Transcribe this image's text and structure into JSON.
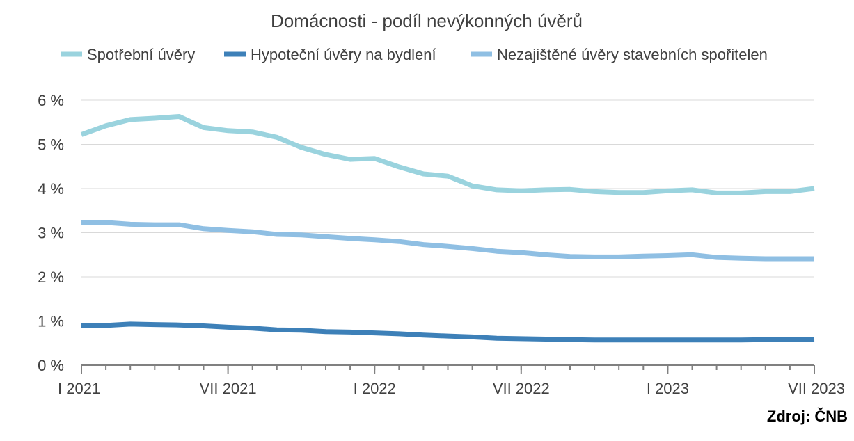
{
  "chart_data": {
    "type": "line",
    "title": "Domácnosti - podíl nevýkonných úvěrů",
    "source": "Zdroj: ČNB",
    "ylim": [
      0,
      6
    ],
    "yticks": [
      "0 %",
      "1 %",
      "2 %",
      "3 %",
      "4 %",
      "5 %",
      "6 %"
    ],
    "xticks": [
      {
        "label": "I 2021",
        "index": 0
      },
      {
        "label": "VII 2021",
        "index": 6
      },
      {
        "label": "I 2022",
        "index": 12
      },
      {
        "label": "VII 2022",
        "index": 18
      },
      {
        "label": "I 2023",
        "index": 24
      },
      {
        "label": "VII 2023",
        "index": 30
      }
    ],
    "grid": true,
    "legend_position": "top",
    "series": [
      {
        "name": "Spotřební úvěry",
        "color": "#9ad3de",
        "values": [
          5.22,
          5.42,
          5.56,
          5.59,
          5.63,
          5.38,
          5.31,
          5.28,
          5.16,
          4.93,
          4.77,
          4.66,
          4.68,
          4.49,
          4.33,
          4.28,
          4.06,
          3.97,
          3.95,
          3.97,
          3.98,
          3.93,
          3.91,
          3.91,
          3.95,
          3.97,
          3.9,
          3.9,
          3.93,
          3.93,
          4.0
        ]
      },
      {
        "name": "Hypoteční úvěry na bydlení",
        "color": "#3d80b8",
        "values": [
          0.9,
          0.9,
          0.93,
          0.92,
          0.91,
          0.89,
          0.86,
          0.84,
          0.8,
          0.79,
          0.76,
          0.75,
          0.73,
          0.71,
          0.68,
          0.66,
          0.64,
          0.61,
          0.6,
          0.59,
          0.58,
          0.57,
          0.57,
          0.57,
          0.57,
          0.57,
          0.57,
          0.57,
          0.58,
          0.58,
          0.59
        ]
      },
      {
        "name": "Nezajištěné úvěry stavebních spořitelen",
        "color": "#8fbfe3",
        "values": [
          3.22,
          3.23,
          3.19,
          3.18,
          3.18,
          3.09,
          3.05,
          3.02,
          2.96,
          2.95,
          2.91,
          2.87,
          2.84,
          2.8,
          2.73,
          2.69,
          2.64,
          2.58,
          2.55,
          2.5,
          2.46,
          2.45,
          2.45,
          2.47,
          2.48,
          2.5,
          2.44,
          2.42,
          2.41,
          2.41,
          2.41
        ]
      }
    ]
  }
}
